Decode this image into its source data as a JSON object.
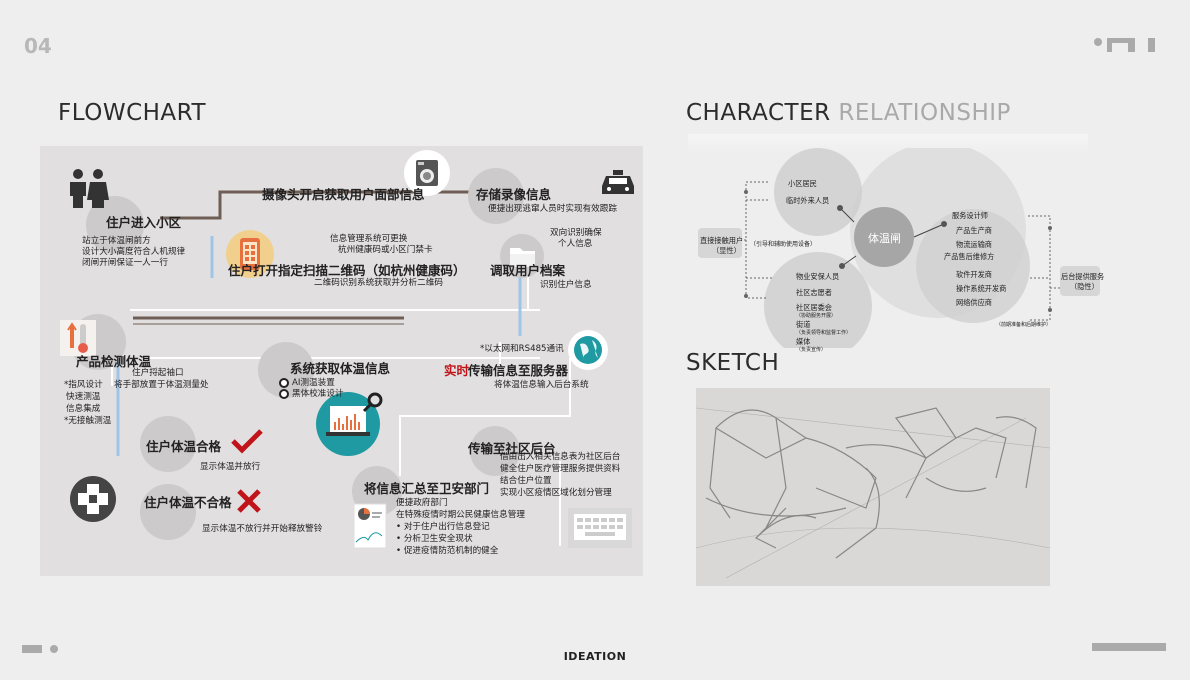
{
  "page_number": "04",
  "footer": "IDEATION",
  "flowchart": {
    "title": "FLOWCHART",
    "steps": {
      "enter": {
        "title": "住户进入小区",
        "desc": [
          "站立于体温闸前方",
          "设计大小高度符合人机规律",
          "闭闸开闸保证一人一行"
        ]
      },
      "camera": {
        "title": "摄像头开启获取用户面部信息"
      },
      "store": {
        "title": "存储录像信息",
        "desc": "便捷出现逃窜人员时实现有效跟踪"
      },
      "dual": {
        "desc": [
          "双向识别确保",
          "个人信息"
        ]
      },
      "qr": {
        "title": "住户打开指定扫描二维码（如杭州健康码）",
        "note": [
          "信息管理系统可更换",
          "杭州健康码或小区门禁卡"
        ],
        "desc": "二维码识别系统获取并分析二维码"
      },
      "profile": {
        "title": "调取用户档案",
        "desc": "识别住户信息"
      },
      "measure": {
        "title": "产品检测体温",
        "desc": [
          "住户捋起袖口",
          "将手部放置于体温测量处"
        ],
        "features": [
          "*指风设计",
          "快速测温",
          "信息集成",
          "*无接触测温"
        ]
      },
      "system": {
        "title": "系统获取体温信息",
        "bullets": [
          "AI测温装置",
          "黑体校准设计"
        ]
      },
      "transmit": {
        "prefix": "实时",
        "title": "传输信息至服务器",
        "note": "*以太网和RS485通讯",
        "desc": "将体温信息输入后台系统"
      },
      "pass": {
        "title": "住户体温合格",
        "desc": "显示体温并放行"
      },
      "fail": {
        "title": "住户体温不合格",
        "desc": "显示体温不放行并开始释放警铃"
      },
      "backend": {
        "title": "传输至社区后台",
        "desc": [
          "借由出入相关信息表为社区后台",
          "健全住户医疗管理服务提供资料",
          "结合住户位置",
          "实现小区疫情区域化划分管理"
        ]
      },
      "police": {
        "title": "将信息汇总至卫安部门",
        "desc": [
          "便捷政府部门",
          "在特殊疫情时期公民健康信息管理"
        ],
        "bullets": [
          "对于住户出行信息登记",
          "分析卫生安全现状",
          "促进疫情防范机制的健全"
        ]
      }
    }
  },
  "character": {
    "title_dark": "CHARACTER",
    "title_light": "RELATIONSHIP",
    "center": "体温闸",
    "left_box": {
      "label": "直接接触用户",
      "sub": "（显性）"
    },
    "right_box": {
      "label": "后台提供服务",
      "sub": "（隐性）"
    },
    "residents": [
      "小区居民",
      "临时外来人员"
    ],
    "assist_note": "（引导和辅助使用设备）",
    "management": [
      {
        "label": "物业安保人员",
        "sub": ""
      },
      {
        "label": "社区志愿者",
        "sub": ""
      },
      {
        "label": "社区居委会",
        "sub": "（协助服务开展）"
      },
      {
        "label": "街道",
        "sub": "（负责领导和监督工作）"
      },
      {
        "label": "媒体",
        "sub": "（负责宣传）"
      }
    ],
    "providers": [
      "服务设计师",
      "产品生产商",
      "物流运输商",
      "产品售后维修方"
    ],
    "software": [
      "软件开发商",
      "操作系统开发商",
      "网络供应商"
    ],
    "maint_note": "（前期准备和后期维护）"
  },
  "sketch": {
    "title": "SKETCH"
  },
  "colors": {
    "accent_red": "#c0141a",
    "teal": "#1f9aa3",
    "blue_line": "#9ec4e6",
    "brown_line": "#6e5e55"
  },
  "icons": [
    "people-icon",
    "washer-icon",
    "car-icon",
    "phone-qr-icon",
    "folder-icon",
    "thermometer-icon",
    "dots-icon",
    "laptop-chart-icon",
    "globe-icon",
    "check-icon",
    "cross-icon",
    "document-icon",
    "keyboard-icon",
    "first-aid-icon"
  ]
}
